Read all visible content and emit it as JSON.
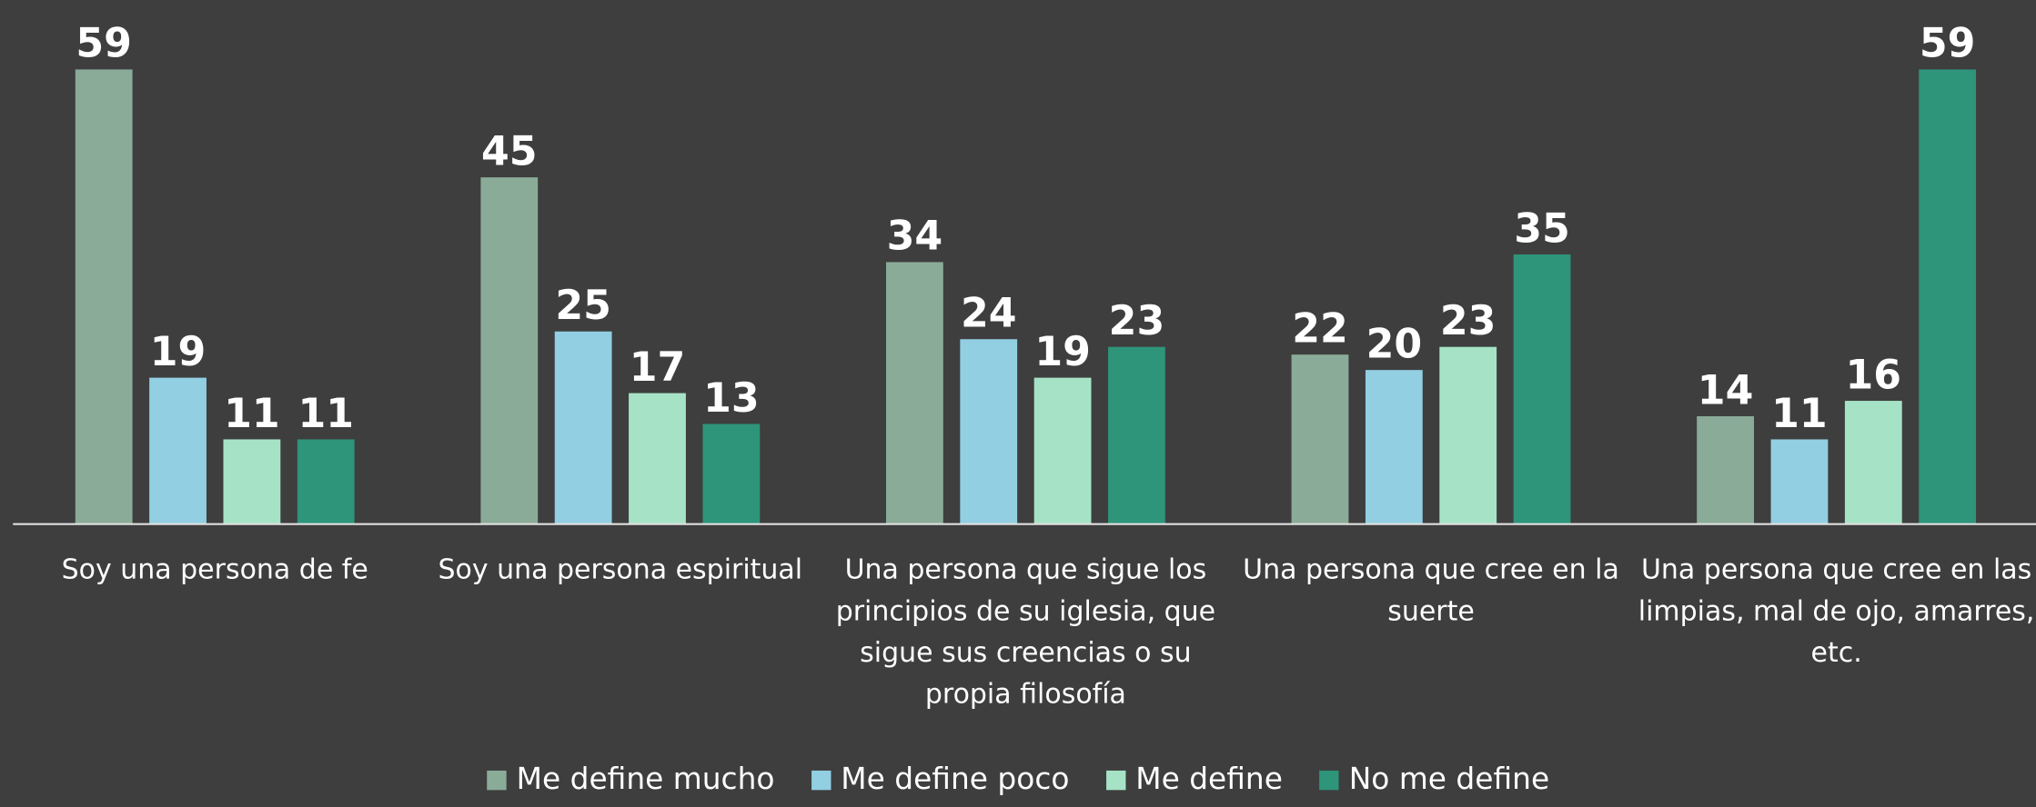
{
  "chart_data": {
    "type": "bar",
    "categories": [
      "Soy una persona de fe",
      "Soy una persona espiritual",
      "Una persona que sigue los principios de su iglesia, que sigue sus creencias o su propia filosofía",
      "Una persona que cree en la suerte",
      "Una persona que cree en las limpias, mal de ojo, amarres, etc."
    ],
    "series": [
      {
        "name": "Me define mucho",
        "color": "#8aab98",
        "values": [
          59,
          45,
          34,
          22,
          14
        ]
      },
      {
        "name": "Me define poco",
        "color": "#92cfe2",
        "values": [
          19,
          25,
          24,
          20,
          11
        ]
      },
      {
        "name": "Me define",
        "color": "#a6e3c6",
        "values": [
          11,
          17,
          19,
          23,
          16
        ]
      },
      {
        "name": "No me define",
        "color": "#2e947a",
        "values": [
          11,
          13,
          23,
          35,
          59
        ]
      }
    ],
    "ylim": [
      0,
      68
    ]
  }
}
